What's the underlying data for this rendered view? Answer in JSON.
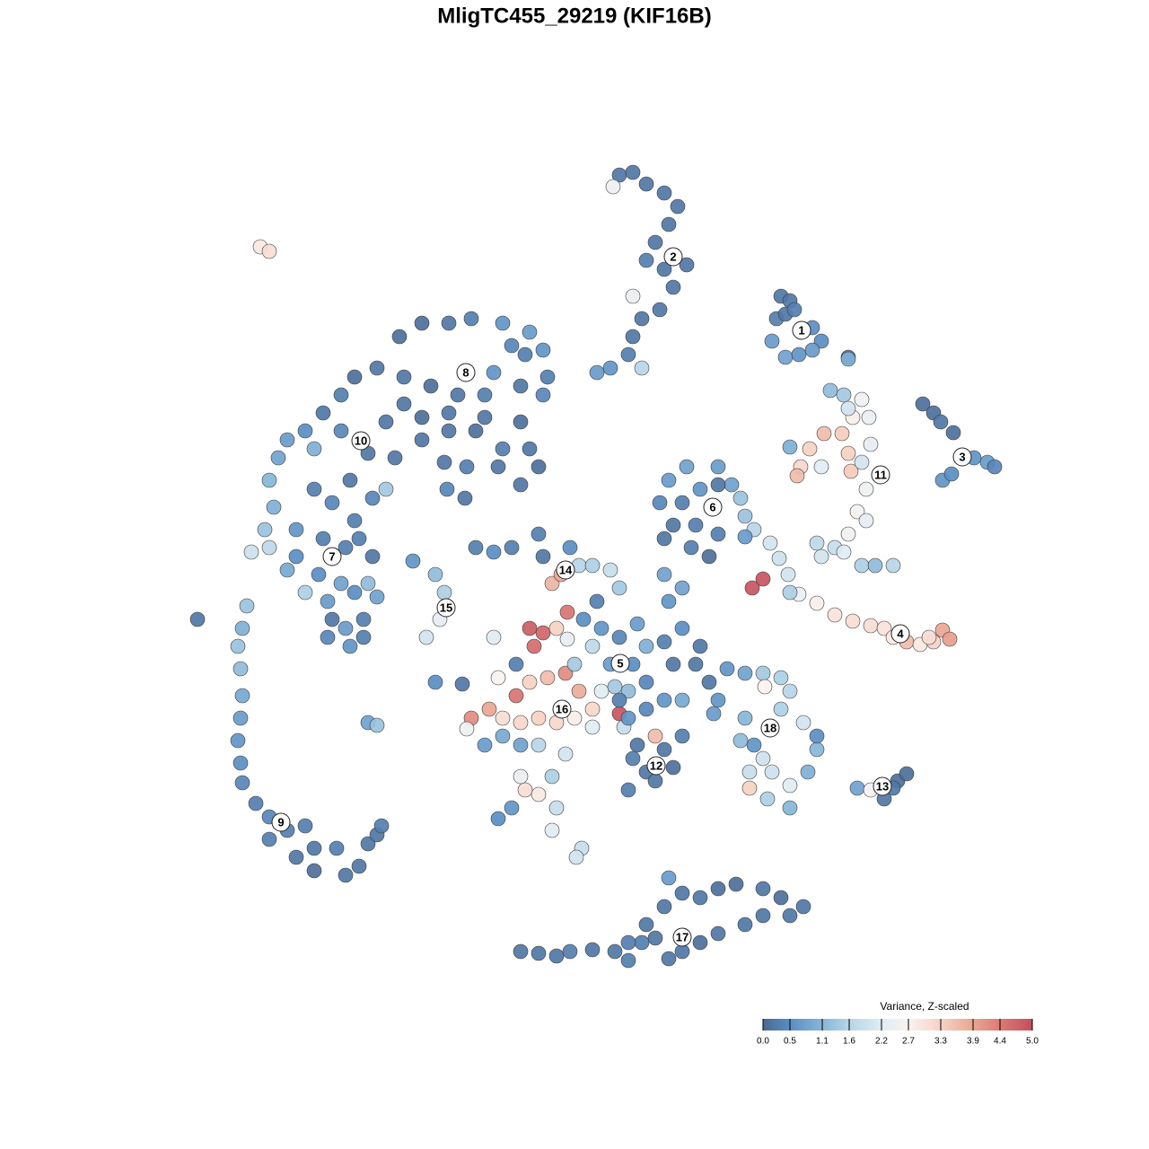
{
  "chart_data": {
    "type": "scatter",
    "title": "MligTC455_29219 (KIF16B)",
    "x": [
      5,
      6.5,
      8,
      10,
      11.5,
      10.5,
      9,
      8,
      10,
      12.5,
      11,
      9.5,
      7.5,
      6.5,
      6,
      4,
      2.5,
      7.5,
      4.3,
      6.5,
      23,
      24,
      22.5,
      23.5,
      24.5,
      26.5,
      27.5,
      22,
      23.5,
      25,
      26.5,
      30.5,
      38.8,
      40,
      40.8,
      42.2,
      44.5,
      46,
      46.8,
      41,
      42,
      30.5,
      28.5,
      30,
      32,
      31,
      32.8,
      27.8,
      29.8,
      26.2,
      24,
      25.2,
      24.8,
      27.5,
      30.5,
      30.8,
      33,
      32,
      32.5,
      31.5,
      32.5,
      30.5,
      29,
      27.5,
      30,
      32,
      33.5,
      35.5,
      27,
      30.5,
      21.8,
      22.8,
      23.8,
      25,
      27,
      29,
      31,
      33,
      34.5,
      35.5,
      37,
      38.5,
      40,
      41,
      41.8,
      39.5,
      19.8,
      21,
      24,
      10.5,
      12.5,
      14,
      16,
      17.5,
      18.5,
      19,
      20,
      12,
      11,
      13.5,
      16,
      15,
      13,
      10,
      19,
      9.5,
      16,
      -19.5,
      -17,
      -14,
      -11.5,
      -8,
      -5,
      -3.5,
      -3,
      -3.5,
      -6,
      -9,
      -10,
      -13,
      -16,
      -19,
      -22,
      -24.5,
      -26,
      -28,
      -30,
      -32,
      -33,
      -34,
      -33.5,
      -34.5,
      -36,
      -34,
      -31,
      -29,
      -27,
      -25,
      -24.5,
      -23,
      -20,
      -17,
      -14,
      -11,
      -8,
      -5,
      -4,
      -6,
      -8.5,
      -12,
      -14.5,
      -21,
      -19,
      -17,
      -14,
      -10,
      -6,
      -21,
      -22.5,
      -14.2,
      -12.2,
      -26,
      -29,
      -5.5,
      -7,
      -30,
      -28.5,
      -27.5,
      -26,
      -24.5,
      -23,
      -22,
      -23.5,
      -25.5,
      -27,
      -27.5,
      -25,
      -23.5,
      -25.5,
      -24,
      -28,
      -22.5,
      -31,
      -32,
      -42,
      -36.5,
      -37,
      -37.5,
      -37.2,
      -37,
      -37.2,
      -37.5,
      -37.2,
      -37,
      -35.5,
      -34,
      -34,
      -32,
      -30,
      -29,
      -31,
      -29,
      -26.5,
      -25.5,
      -24,
      -23,
      -22,
      -21.5,
      -35,
      -34,
      -18,
      -15.5,
      -14.5,
      -15,
      -16.5,
      -15.5,
      -12.5,
      -9,
      -23,
      -22,
      -11,
      -9,
      -7,
      -4,
      -3.5,
      -0.5,
      0.5,
      2,
      4,
      5,
      -2.5,
      -1.5,
      -5,
      -4.5,
      -3.5,
      -0.8,
      -2,
      -0.8,
      -6.5,
      -5,
      -3,
      -1,
      -8.5,
      -6.5,
      -9.5,
      -11.5,
      -12,
      -8,
      -6,
      -4,
      -2,
      0,
      2,
      2,
      5,
      5.5,
      3,
      4.5,
      0.5,
      -8,
      -10,
      -6,
      -4,
      -1,
      -2.5,
      -4,
      -5.5,
      -6,
      -8.5,
      -7,
      -2,
      -2.5,
      0.8,
      0.2,
      1,
      3,
      5,
      7,
      8,
      2,
      0,
      4,
      6.5,
      8,
      6,
      5,
      8,
      10,
      12,
      11,
      13.5,
      10,
      12,
      14,
      10.5,
      12,
      10,
      6,
      7,
      9,
      10,
      12,
      11,
      8,
      6,
      9,
      6.5,
      15.5,
      16,
      2.5,
      17,
      19,
      21,
      23,
      24,
      23,
      21.2,
      19,
      18.5,
      20,
      21,
      19.5,
      22,
      19.5,
      21.5,
      24,
      24,
      26,
      27,
      27,
      25.5,
      15,
      31.5,
      33,
      34.5,
      36,
      37,
      35.5,
      -6,
      -4,
      -2,
      -0.5,
      2,
      4.5,
      6,
      7.5,
      8,
      10,
      12,
      14,
      16,
      18,
      21,
      23,
      25.5,
      24,
      21,
      19,
      16,
      14,
      12,
      10.5,
      9,
      6,
      10.5
    ],
    "y": [
      44.5,
      44.8,
      43.5,
      42.5,
      41,
      39,
      37,
      35,
      34,
      34.5,
      32,
      29.5,
      28.5,
      26.5,
      24.5,
      23,
      22.5,
      23,
      43.2,
      31,
      31,
      30.5,
      28.5,
      29,
      29.5,
      27.5,
      26,
      26,
      24.2,
      24.5,
      25,
      24.2,
      19,
      18,
      17,
      15.8,
      13,
      12.5,
      12,
      10.5,
      11.2,
      24,
      20.5,
      20,
      19.5,
      17.5,
      17.5,
      15.7,
      15.7,
      14,
      14.2,
      12,
      11,
      12,
      13.5,
      11.5,
      14.5,
      12.5,
      9.5,
      7,
      6,
      4.5,
      3,
      2,
      2.5,
      1,
      1,
      1,
      3.5,
      18.5,
      3.5,
      1.8,
      0,
      -2.2,
      -3.2,
      -4.5,
      -5.2,
      -5.7,
      -6,
      -7,
      -7.5,
      -7.8,
      -7.5,
      -6.2,
      -7.2,
      -7,
      -1.5,
      -0.5,
      -2,
      10.5,
      12,
      9.5,
      12,
      10,
      8.5,
      6.5,
      5,
      8,
      5.5,
      5.5,
      4.5,
      2,
      3,
      4,
      4.2,
      8,
      10,
      26.5,
      28,
      28,
      28.5,
      28,
      27,
      25,
      22,
      20,
      21,
      22.5,
      20,
      20,
      21,
      22,
      23,
      22,
      20,
      18,
      16,
      15,
      13,
      10.5,
      7.5,
      5,
      2.5,
      3,
      5,
      9.5,
      8,
      10.5,
      6,
      13.5,
      13,
      15,
      16,
      16,
      14,
      14,
      12,
      10,
      12,
      12,
      12.5,
      17,
      19,
      17.5,
      18,
      17.5,
      17,
      9.5,
      8.5,
      9.5,
      8.5,
      16,
      14,
      24.5,
      25.5,
      -2,
      0,
      -3,
      -1,
      -2,
      -1,
      -2.5,
      -5,
      -6,
      -5,
      -7,
      -8,
      -7,
      3,
      4,
      4,
      2,
      2,
      0.5,
      -5,
      -3.5,
      -6,
      -8,
      -10.5,
      -13.5,
      -16,
      -18.5,
      -21,
      -23.2,
      -25.5,
      -27,
      -29.5,
      -28.5,
      -28,
      -30.5,
      -31.5,
      -33,
      -30.5,
      -33.5,
      -32.5,
      -30,
      -29,
      -28,
      36.5,
      36,
      1.5,
      0,
      -2,
      -5,
      -7,
      -12,
      -12.2,
      -7,
      -16.5,
      -16.8,
      3,
      2.5,
      3,
      4.5,
      2,
      3,
      1,
      1,
      0.5,
      -1.5,
      -1,
      0,
      -6,
      -8,
      -6.5,
      -4.2,
      -6,
      -7.2,
      -10,
      -12,
      -11.5,
      -11,
      -11.5,
      -13.5,
      -15,
      -16,
      -17.2,
      -16,
      -16.5,
      -16,
      -16.5,
      -16,
      -15,
      -17,
      -15.5,
      -17,
      -13,
      -12.5,
      -13,
      -18,
      -19,
      -19,
      -19,
      -20,
      -22.5,
      -24.5,
      -24,
      -22.5,
      -27.2,
      -26,
      -26,
      -28.5,
      -30.5,
      -31.5,
      -5,
      -6,
      -7,
      -5.5,
      -8,
      -8,
      -10,
      -10,
      -10,
      -12,
      -13,
      -14,
      -15,
      -14,
      -14,
      -10,
      -10,
      -7.5,
      -6,
      -8,
      -3,
      -1.5,
      0,
      -16,
      -19,
      -18,
      -19.5,
      -18,
      -21.5,
      -22,
      -24,
      -23,
      -20.5,
      -15.5,
      -14,
      -3,
      -10.5,
      -11,
      -11,
      -11.5,
      -13,
      -15,
      -12.5,
      -16,
      -18.5,
      -19,
      -20.5,
      -22,
      -22,
      -23.8,
      -25,
      -26,
      -23.5,
      -22,
      -19.5,
      -18,
      -16.5,
      -12,
      -23.8,
      -24,
      -25,
      -23,
      -22.2,
      -23.8,
      -42,
      -42.2,
      -42.5,
      -42,
      -41.8,
      -42,
      -43,
      -41,
      -39,
      -37,
      -35.5,
      -36,
      -35,
      -34.5,
      -35,
      -36,
      -37,
      -38,
      -38,
      -39,
      -40,
      -41,
      -42,
      -33.8,
      -40.5,
      -41,
      -42.8
    ],
    "values": [
      0.2,
      0.2,
      0.2,
      0.2,
      0.2,
      0.2,
      0.2,
      0.3,
      0.2,
      0.2,
      0.2,
      0.2,
      0.2,
      0.2,
      0.3,
      0.6,
      0.7,
      1.6,
      2.5,
      2.4,
      0.2,
      0.2,
      0.3,
      0.2,
      0.3,
      0.5,
      0.5,
      0.7,
      0.8,
      0.6,
      0.7,
      0.1,
      0.1,
      0.1,
      0.2,
      0.1,
      0.6,
      0.7,
      0.4,
      0.6,
      0.5,
      1.0,
      1.2,
      1.4,
      2.5,
      2.8,
      2.4,
      3.6,
      3.4,
      3.3,
      1.0,
      3.2,
      3.6,
      2.2,
      3.3,
      3.4,
      2.3,
      2.0,
      2.5,
      2.6,
      2.3,
      2.5,
      1.8,
      2.0,
      2.2,
      1.5,
      1.2,
      1.6,
      1.7,
      2.0,
      2.0,
      1.9,
      2.0,
      2.4,
      2.8,
      3.0,
      3.1,
      3.1,
      3.0,
      2.9,
      3.6,
      2.9,
      3.3,
      3.9,
      4.0,
      3.1,
      4.9,
      4.9,
      1.5,
      0.7,
      0.8,
      0.6,
      0.7,
      0.8,
      1.3,
      1.3,
      1.6,
      0.3,
      0.2,
      0.3,
      0.3,
      0.1,
      0.3,
      0.2,
      0.7,
      0.4,
      0.2,
      0.1,
      0.1,
      0.2,
      0.3,
      0.6,
      0.7,
      0.6,
      0.3,
      0.4,
      0.2,
      0.6,
      0.3,
      0.2,
      0.1,
      0.2,
      0.2,
      0.1,
      0.3,
      0.2,
      0.5,
      0.7,
      0.8,
      1.1,
      1.0,
      1.3,
      1.9,
      1.7,
      0.6,
      0.3,
      0.4,
      0.2,
      0.3,
      0.2,
      0.2,
      0.2,
      0.2,
      0.1,
      0.3,
      0.2,
      0.1,
      0.2,
      0.2,
      0.3,
      0.2,
      0.2,
      0.2,
      0.1,
      0.2,
      0.2,
      0.1,
      1.4,
      0.4,
      0.4,
      0.2,
      0.4,
      1.0,
      0.3,
      0.4,
      1.5,
      0.5,
      0.7,
      0.8,
      0.5,
      1.2,
      0.8,
      0.3,
      0.7,
      0.2,
      0.4,
      0.6,
      0.3,
      0.3,
      0.3,
      0.3,
      0.2,
      0.5,
      0.9,
      0.2,
      1.3,
      1.0,
      1.3,
      1.2,
      0.9,
      0.7,
      0.6,
      0.5,
      0.4,
      0.3,
      0.4,
      0.3,
      0.3,
      0.3,
      0.2,
      0.2,
      0.1,
      0.3,
      0.2,
      0.2,
      0.2,
      0.2,
      0.3,
      2.9,
      3.1,
      0.6,
      1.2,
      1.5,
      2.3,
      2.0,
      0.5,
      0.2,
      2.2,
      0.8,
      1.3,
      0.3,
      0.5,
      0.3,
      0.3,
      0.2,
      0.5,
      1.6,
      1.5,
      1.8,
      1.4,
      3.7,
      3.9,
      4.8,
      4.6,
      4.7,
      4.5,
      3.3,
      2.3,
      0.3,
      3.3,
      3.6,
      4.2,
      2.7,
      4.5,
      3.9,
      4.2,
      2.5,
      3.1,
      3.2,
      3.3,
      3.2,
      2.8,
      3.2,
      2.2,
      4.9,
      1.8,
      2.2,
      1.4,
      3.8,
      0.9,
      0.7,
      0.8,
      1.6,
      2.0,
      1.5,
      2.9,
      3.1,
      2.4,
      0.5,
      0.6,
      1.8,
      2.2,
      1.8,
      2.0,
      0.5,
      0.6,
      0.4,
      0.7,
      1.0,
      1.7,
      1.4,
      0.7,
      0.5,
      0.4,
      1.2,
      0.3,
      0.4,
      0.6,
      0.9,
      0.2,
      0.2,
      0.3,
      0.5,
      0.2,
      0.6,
      0.8,
      0.8,
      0.6,
      0.2,
      3.6,
      0.2,
      0.3,
      0.1,
      0.2,
      0.3,
      0.2,
      0.3,
      0.7,
      0.6,
      0.3,
      0.6,
      0.8,
      1.4,
      1.5,
      1.6,
      1.5,
      2.7,
      1.1,
      1.2,
      0.6,
      1.9,
      1.8,
      1.9,
      3.3,
      1.5,
      1.1,
      2.2,
      1.0,
      1.1,
      0.5,
      2.0,
      0.2,
      0.8,
      2.6,
      0.2,
      0.1,
      0.1,
      0.2,
      0.2,
      0.2,
      0.2,
      0.3,
      0.2,
      0.2,
      0.3,
      0.3,
      0.2,
      0.2,
      0.2,
      0.2,
      0.1,
      0.1,
      0.2,
      0.1,
      0.2,
      0.2,
      0.2,
      0.2,
      0.2,
      0.1,
      0.2,
      0.7,
      0.2,
      0.3,
      0.2
    ],
    "clusters": [
      {
        "label": "1",
        "x": 25.3,
        "y": 27.2
      },
      {
        "label": "2",
        "x": 11,
        "y": 35.4
      },
      {
        "label": "3",
        "x": 43.2,
        "y": 13.1
      },
      {
        "label": "4",
        "x": 36.3,
        "y": -6.6
      },
      {
        "label": "5",
        "x": 5.1,
        "y": -9.9
      },
      {
        "label": "6",
        "x": 15.4,
        "y": 7.5
      },
      {
        "label": "7",
        "x": -27,
        "y": 2
      },
      {
        "label": "8",
        "x": -12.1,
        "y": 22.5
      },
      {
        "label": "9",
        "x": -32.7,
        "y": -27.6
      },
      {
        "label": "10",
        "x": -23.8,
        "y": 14.9
      },
      {
        "label": "11",
        "x": 34.1,
        "y": 11.1
      },
      {
        "label": "12",
        "x": 9.1,
        "y": -21.3
      },
      {
        "label": "13",
        "x": 34.3,
        "y": -23.6
      },
      {
        "label": "14",
        "x": -1,
        "y": 0.5
      },
      {
        "label": "15",
        "x": -14.3,
        "y": -3.7
      },
      {
        "label": "16",
        "x": -1.4,
        "y": -15
      },
      {
        "label": "17",
        "x": 12,
        "y": -40.4
      },
      {
        "label": "18",
        "x": 21.8,
        "y": -17.1
      }
    ],
    "colorbar": {
      "title": "Variance, Z-scaled",
      "ticks": [
        {
          "value": 0,
          "label": "0.0"
        },
        0.5,
        1.1,
        1.6,
        2.2,
        2.7,
        3.3,
        3.9,
        4.4,
        {
          "value": 5,
          "label": "5.0"
        }
      ],
      "colors": [
        "#4a6891",
        "#5a8ec4",
        "#86b6d8",
        "#b7d5e7",
        "#e1ecf3",
        "#f9f3f0",
        "#f6d2c3",
        "#eaa691",
        "#db7b76",
        "#c44e5c"
      ]
    }
  }
}
